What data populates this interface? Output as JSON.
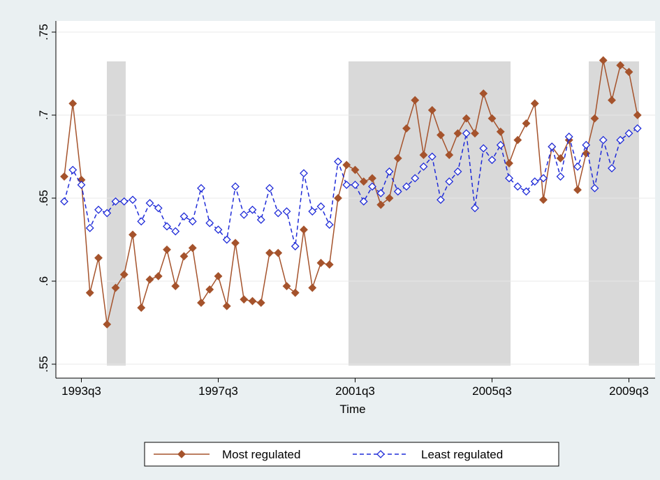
{
  "chart_data": {
    "type": "line",
    "x_label": "Time",
    "categories": [
      null,
      null,
      "1993q3",
      null,
      null,
      null,
      null,
      null,
      null,
      null,
      null,
      null,
      null,
      null,
      null,
      null,
      null,
      null,
      "1997q3",
      null,
      null,
      null,
      null,
      null,
      null,
      null,
      null,
      null,
      null,
      null,
      null,
      null,
      null,
      null,
      "2001q3",
      null,
      null,
      null,
      null,
      null,
      null,
      null,
      null,
      null,
      null,
      null,
      null,
      null,
      null,
      null,
      "2005q3",
      null,
      null,
      null,
      null,
      null,
      null,
      null,
      null,
      null,
      null,
      null,
      null,
      null,
      null,
      null,
      "2009q3",
      null
    ],
    "ylim": [
      0.55,
      0.75
    ],
    "yticks": [
      {
        "value": 0.55,
        "label": ".55"
      },
      {
        "value": 0.6,
        "label": ".6"
      },
      {
        "value": 0.65,
        "label": ".65"
      },
      {
        "value": 0.7,
        "label": ".7"
      },
      {
        "value": 0.75,
        "label": ".75"
      }
    ],
    "grid": true,
    "series": [
      {
        "name": "Most regulated",
        "color": "#a5532c",
        "dash": false,
        "marker": "filled",
        "values": [
          0.663,
          0.707,
          0.661,
          0.593,
          0.614,
          0.574,
          0.596,
          0.604,
          0.628,
          0.584,
          0.601,
          0.603,
          0.619,
          0.597,
          0.615,
          0.62,
          0.587,
          0.595,
          0.603,
          0.585,
          0.623,
          0.589,
          0.588,
          0.587,
          0.617,
          0.617,
          0.597,
          0.593,
          0.631,
          0.596,
          0.611,
          0.61,
          0.65,
          0.67,
          0.667,
          0.66,
          0.662,
          0.646,
          0.65,
          0.674,
          0.692,
          0.709,
          0.676,
          0.703,
          0.688,
          0.676,
          0.689,
          0.698,
          0.689,
          0.713,
          0.698,
          0.69,
          0.671,
          0.685,
          0.695,
          0.707,
          0.649,
          0.681,
          0.674,
          0.685,
          0.655,
          0.677,
          0.698,
          0.733,
          0.709,
          0.73,
          0.726,
          0.7
        ]
      },
      {
        "name": "Least regulated",
        "color": "#1f2bd8",
        "dash": true,
        "marker": "hollow",
        "values": [
          0.648,
          0.667,
          0.658,
          0.632,
          0.643,
          0.641,
          0.648,
          0.648,
          0.649,
          0.636,
          0.647,
          0.644,
          0.633,
          0.63,
          0.639,
          0.636,
          0.656,
          0.635,
          0.631,
          0.625,
          0.657,
          0.64,
          0.643,
          0.637,
          0.656,
          0.641,
          0.642,
          0.621,
          0.665,
          0.642,
          0.645,
          0.634,
          0.672,
          0.658,
          0.658,
          0.648,
          0.657,
          0.653,
          0.666,
          0.654,
          0.657,
          0.662,
          0.669,
          0.675,
          0.649,
          0.66,
          0.666,
          0.689,
          0.644,
          0.68,
          0.673,
          0.682,
          0.662,
          0.657,
          0.654,
          0.66,
          0.662,
          0.681,
          0.663,
          0.687,
          0.669,
          0.682,
          0.656,
          0.685,
          0.668,
          0.685,
          0.689,
          0.692
        ]
      }
    ]
  }
}
